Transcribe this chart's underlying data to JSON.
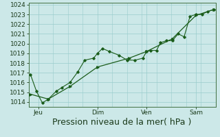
{
  "title": "",
  "xlabel": "Pression niveau de la mer( hPa )",
  "ylabel": "",
  "bg_color": "#cce8e8",
  "grid_color": "#99cccc",
  "line_color": "#1a5c1a",
  "ylim": [
    1013.5,
    1024.2
  ],
  "yticks": [
    1014,
    1015,
    1016,
    1017,
    1018,
    1019,
    1020,
    1021,
    1022,
    1023,
    1024
  ],
  "xtick_labels": [
    "Jeu",
    "Dim",
    "Ven",
    "Sam"
  ],
  "xtick_positions": [
    0.5,
    3.5,
    6.0,
    8.5
  ],
  "xlim": [
    0.0,
    9.5
  ],
  "series1_x": [
    0.1,
    0.4,
    0.7,
    1.0,
    1.4,
    1.7,
    2.1,
    2.5,
    2.85,
    3.3,
    3.5,
    3.75,
    4.1,
    4.6,
    5.0,
    5.4,
    5.8,
    6.0,
    6.2,
    6.5,
    6.7,
    7.0,
    7.3,
    7.6,
    7.9,
    8.2,
    8.5,
    8.8,
    9.1,
    9.4
  ],
  "series1_y": [
    1016.8,
    1015.1,
    1013.9,
    1014.3,
    1015.1,
    1015.5,
    1016.0,
    1017.1,
    1018.3,
    1018.5,
    1019.0,
    1019.5,
    1019.2,
    1018.8,
    1018.3,
    1018.3,
    1018.5,
    1019.2,
    1019.3,
    1019.3,
    1020.1,
    1020.3,
    1020.3,
    1021.0,
    1020.7,
    1022.8,
    1023.0,
    1023.0,
    1023.3,
    1023.5
  ],
  "series2_x": [
    0.1,
    1.0,
    2.1,
    3.5,
    5.1,
    6.0,
    7.3,
    8.5,
    9.4
  ],
  "series2_y": [
    1014.8,
    1014.3,
    1015.6,
    1017.6,
    1018.5,
    1019.2,
    1020.5,
    1022.9,
    1023.5
  ],
  "xlabel_fontsize": 9,
  "tick_fontsize": 6.5
}
